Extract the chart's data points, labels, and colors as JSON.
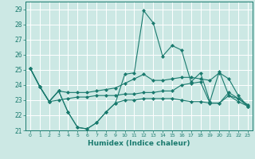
{
  "title": "",
  "xlabel": "Humidex (Indice chaleur)",
  "xlim": [
    -0.5,
    23.5
  ],
  "ylim": [
    21,
    29.5
  ],
  "yticks": [
    21,
    22,
    23,
    24,
    25,
    26,
    27,
    28,
    29
  ],
  "xticks": [
    0,
    1,
    2,
    3,
    4,
    5,
    6,
    7,
    8,
    9,
    10,
    11,
    12,
    13,
    14,
    15,
    16,
    17,
    18,
    19,
    20,
    21,
    22,
    23
  ],
  "bg_color": "#cce8e4",
  "line_color": "#1a7a6e",
  "grid_color": "#ffffff",
  "lines": [
    [
      25.1,
      23.9,
      22.9,
      23.6,
      22.2,
      21.2,
      21.1,
      21.5,
      22.2,
      22.8,
      24.7,
      24.8,
      28.9,
      28.1,
      25.9,
      26.6,
      26.3,
      24.2,
      24.8,
      22.9,
      24.9,
      23.3,
      22.9,
      22.6
    ],
    [
      25.1,
      23.9,
      22.9,
      23.6,
      22.2,
      21.2,
      21.1,
      21.5,
      22.2,
      22.8,
      23.0,
      23.0,
      23.1,
      23.1,
      23.1,
      23.1,
      23.0,
      22.9,
      22.9,
      22.8,
      22.8,
      23.3,
      23.1,
      22.6
    ],
    [
      25.1,
      23.9,
      22.9,
      23.6,
      23.5,
      23.5,
      23.5,
      23.6,
      23.7,
      23.8,
      24.1,
      24.4,
      24.7,
      24.3,
      24.3,
      24.4,
      24.5,
      24.5,
      24.4,
      24.3,
      24.8,
      24.4,
      23.3,
      22.6
    ],
    [
      25.1,
      23.9,
      22.9,
      23.0,
      23.1,
      23.2,
      23.2,
      23.3,
      23.3,
      23.3,
      23.4,
      23.4,
      23.5,
      23.5,
      23.6,
      23.6,
      24.0,
      24.1,
      24.2,
      22.8,
      22.8,
      23.5,
      23.1,
      22.7
    ]
  ]
}
